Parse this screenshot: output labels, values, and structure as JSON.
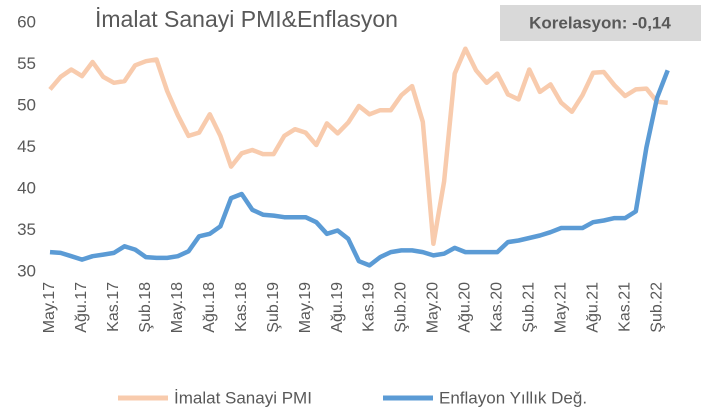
{
  "chart_data": {
    "type": "line",
    "title": "İmalat Sanayi PMI&Enflasyon",
    "annotation": "Korelasyon: -0,14",
    "categories": [
      "May.17",
      null,
      null,
      "Ağu.17",
      null,
      null,
      "Kas.17",
      null,
      null,
      "Şub.18",
      null,
      null,
      "May.18",
      null,
      null,
      "Ağu.18",
      null,
      null,
      "Kas.18",
      null,
      null,
      "Şub.19",
      null,
      null,
      "May.19",
      null,
      null,
      "Ağu.19",
      null,
      null,
      "Kas.19",
      null,
      null,
      "Şub.20",
      null,
      null,
      "May.20",
      null,
      null,
      "Ağu.20",
      null,
      null,
      "Kas.20",
      null,
      null,
      "Şub.21",
      null,
      null,
      "May.21",
      null,
      null,
      "Ağu.21",
      null,
      null,
      "Kas.21",
      null,
      null,
      "Şub.22",
      null
    ],
    "series": [
      {
        "name": "İmalat Sanayi PMI",
        "color": "#f8cbad",
        "values": [
          52.0,
          53.5,
          54.4,
          53.6,
          55.3,
          53.5,
          52.8,
          53.0,
          54.9,
          55.4,
          55.6,
          51.8,
          48.9,
          46.4,
          46.8,
          49.0,
          46.4,
          42.7,
          44.3,
          44.7,
          44.2,
          44.2,
          46.4,
          47.2,
          46.8,
          45.3,
          47.9,
          46.7,
          48.0,
          50.0,
          49.0,
          49.5,
          49.5,
          51.3,
          52.4,
          48.1,
          33.4,
          40.9,
          53.9,
          56.9,
          54.3,
          52.8,
          53.9,
          51.4,
          50.8,
          54.4,
          51.7,
          52.6,
          50.4,
          49.3,
          51.3,
          54.0,
          54.1,
          52.5,
          51.2,
          52.0,
          52.1,
          50.5,
          50.4
        ]
      },
      {
        "name": "Enflayon Yıllık Değ.",
        "color": "#5b9bd5",
        "values": [
          32.4,
          32.3,
          31.9,
          31.5,
          31.9,
          32.1,
          32.3,
          33.1,
          32.7,
          31.8,
          31.7,
          31.7,
          31.9,
          32.5,
          34.3,
          34.6,
          35.5,
          38.9,
          39.4,
          37.5,
          36.9,
          36.8,
          36.6,
          36.6,
          36.6,
          36.0,
          34.6,
          35.0,
          34.0,
          31.3,
          30.8,
          31.8,
          32.4,
          32.6,
          32.6,
          32.4,
          32.0,
          32.2,
          32.9,
          32.4,
          32.4,
          32.4,
          32.4,
          33.6,
          33.8,
          34.1,
          34.4,
          34.8,
          35.3,
          35.3,
          35.3,
          36.0,
          36.2,
          36.5,
          36.5,
          37.3,
          45.0,
          51.0,
          54.3
        ]
      }
    ],
    "ylim": [
      30,
      60
    ],
    "yticks": [
      30,
      35,
      40,
      45,
      50,
      55,
      60
    ],
    "grid": false,
    "legend": "bottom"
  }
}
